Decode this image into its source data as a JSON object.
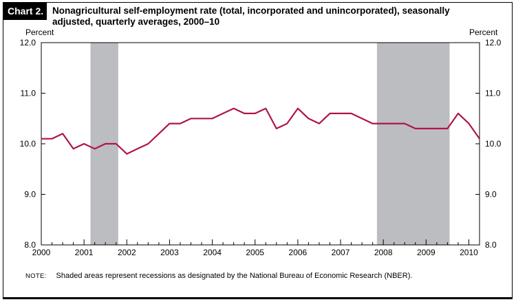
{
  "chart_tag": "Chart 2.",
  "title": "Nonagricultural self-employment rate (total, incorporated and unincorporated), seasonally adjusted, quarterly averages, 2000–10",
  "note_label": "NOTE:",
  "note_text": "Shaded areas represent recessions as designated by the National Bureau of Economic Research (NBER).",
  "colors": {
    "line": "#b0134a",
    "recession": "#bcbdc0",
    "axis": "#000000"
  },
  "chart_data": {
    "type": "line",
    "ylabel_left": "Percent",
    "ylabel_right": "Percent",
    "ylim": [
      8.0,
      12.0
    ],
    "yticks": [
      "8.0",
      "9.0",
      "10.0",
      "11.0",
      "12.0"
    ],
    "xlim": [
      2000,
      2010.25
    ],
    "xticks": [
      "2000",
      "2001",
      "2002",
      "2003",
      "2004",
      "2005",
      "2006",
      "2007",
      "2008",
      "2009",
      "2010"
    ],
    "grid": false,
    "recessions": [
      [
        2001.15,
        2001.8
      ],
      [
        2007.85,
        2009.55
      ]
    ],
    "series": [
      {
        "x": [
          2000.0,
          2000.25,
          2000.5,
          2000.75,
          2001.0,
          2001.25,
          2001.5,
          2001.75,
          2002.0,
          2002.25,
          2002.5,
          2002.75,
          2003.0,
          2003.25,
          2003.5,
          2003.75,
          2004.0,
          2004.25,
          2004.5,
          2004.75,
          2005.0,
          2005.25,
          2005.5,
          2005.75,
          2006.0,
          2006.25,
          2006.5,
          2006.75,
          2007.0,
          2007.25,
          2007.5,
          2007.75,
          2008.0,
          2008.25,
          2008.5,
          2008.75,
          2009.0,
          2009.25,
          2009.5,
          2009.75,
          2010.0,
          2010.25
        ],
        "values": [
          10.1,
          10.1,
          10.2,
          9.9,
          10.0,
          9.9,
          10.0,
          10.0,
          9.8,
          9.9,
          10.0,
          10.2,
          10.4,
          10.4,
          10.5,
          10.5,
          10.5,
          10.6,
          10.7,
          10.6,
          10.6,
          10.7,
          10.3,
          10.4,
          10.7,
          10.5,
          10.4,
          10.6,
          10.6,
          10.6,
          10.5,
          10.4,
          10.4,
          10.4,
          10.4,
          10.3,
          10.3,
          10.3,
          10.3,
          10.6,
          10.4,
          10.1
        ]
      }
    ]
  }
}
